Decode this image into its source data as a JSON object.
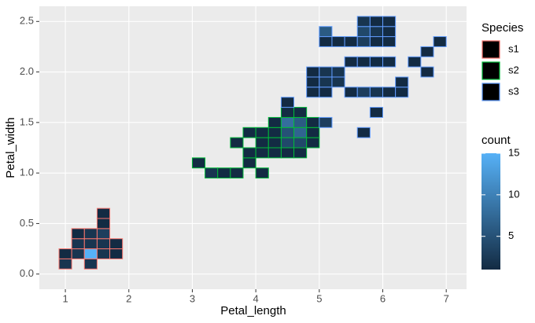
{
  "chart_data": {
    "type": "bin2d",
    "x_label": "Petal_length",
    "y_label": "Petal_width",
    "xlim": [
      0.59,
      7.32
    ],
    "ylim": [
      -0.15,
      2.65
    ],
    "xticks": [
      1,
      2,
      3,
      4,
      5,
      6,
      7
    ],
    "yticks": [
      {
        "value": 0,
        "label": "0.0"
      },
      0.5,
      {
        "value": 1,
        "label": "1.0"
      },
      1.5,
      {
        "value": 2,
        "label": "2.0"
      },
      2.5
    ],
    "binwidth": [
      0.2,
      0.1
    ],
    "grid": true,
    "legend_title": "Species",
    "series": [
      {
        "name": "s1",
        "color": "#F8766D",
        "x": [
          1.0,
          1.2,
          1.4,
          1.6,
          1.8,
          1.0,
          1.4,
          1.2,
          1.4,
          1.6,
          1.8,
          1.2,
          1.4,
          1.6,
          1.6,
          1.6
        ],
        "y": [
          0.2,
          0.2,
          0.2,
          0.2,
          0.2,
          0.1,
          0.1,
          0.3,
          0.3,
          0.3,
          0.3,
          0.4,
          0.4,
          0.4,
          0.5,
          0.6
        ],
        "count": [
          1,
          2,
          15,
          2,
          1,
          2,
          2,
          2,
          2,
          2,
          1,
          1,
          2,
          3,
          1,
          1
        ]
      },
      {
        "name": "s2",
        "color": "#00BA38",
        "x": [
          3.3,
          3.5,
          3.7,
          4.1,
          3.1,
          3.9,
          3.9,
          4.1,
          4.3,
          4.5,
          4.7,
          3.7,
          4.1,
          4.3,
          4.5,
          4.7,
          4.9,
          3.9,
          4.1,
          4.3,
          4.5,
          4.7,
          4.9,
          4.3,
          4.5,
          4.7,
          4.9,
          4.5,
          4.7
        ],
        "y": [
          1.0,
          1.0,
          1.0,
          1.0,
          1.1,
          1.1,
          1.2,
          1.2,
          1.2,
          1.2,
          1.2,
          1.3,
          1.3,
          1.3,
          1.3,
          1.3,
          1.3,
          1.4,
          1.4,
          1.4,
          1.4,
          1.4,
          1.4,
          1.5,
          1.5,
          1.5,
          1.5,
          1.6,
          1.6
        ],
        "count": [
          2,
          1,
          1,
          1,
          1,
          1,
          1,
          1,
          1,
          1,
          1,
          1,
          1,
          1,
          4,
          4,
          1,
          1,
          1,
          1,
          5,
          7,
          1,
          1,
          8,
          6,
          1,
          1,
          1
        ]
      },
      {
        "name": "s3",
        "color": "#619CFF",
        "x": [
          4.5,
          5.1,
          5.7,
          5.9,
          4.9,
          5.1,
          5.5,
          5.7,
          5.9,
          6.1,
          6.3,
          4.9,
          5.1,
          5.3,
          6.3,
          4.9,
          5.1,
          5.3,
          6.7,
          5.5,
          5.7,
          5.9,
          6.1,
          6.5,
          6.7,
          5.1,
          5.3,
          5.5,
          5.7,
          5.9,
          6.1,
          6.9,
          5.1,
          5.7,
          5.9,
          6.1,
          5.7,
          5.9,
          6.1
        ],
        "y": [
          1.7,
          1.5,
          1.4,
          1.6,
          1.8,
          1.8,
          1.8,
          1.8,
          1.8,
          1.8,
          1.8,
          1.9,
          1.9,
          1.9,
          1.9,
          2.0,
          2.0,
          2.0,
          2.0,
          2.1,
          2.1,
          2.1,
          2.1,
          2.1,
          2.2,
          2.3,
          2.3,
          2.3,
          2.3,
          2.3,
          2.3,
          2.3,
          2.4,
          2.4,
          2.4,
          2.4,
          2.5,
          2.5,
          2.5
        ],
        "count": [
          1,
          3,
          1,
          1,
          1,
          1,
          1,
          3,
          2,
          1,
          1,
          1,
          2,
          2,
          1,
          1,
          2,
          2,
          1,
          1,
          1,
          1,
          1,
          1,
          1,
          1,
          1,
          1,
          3,
          1,
          1,
          1,
          6,
          4,
          2,
          1,
          2,
          1,
          1
        ]
      }
    ],
    "fill_title": "count",
    "fill_colors": [
      "#132B43",
      "#56B1F7"
    ],
    "fill_lim": [
      1,
      15
    ],
    "fill_ticks": [
      5,
      10,
      15
    ]
  }
}
